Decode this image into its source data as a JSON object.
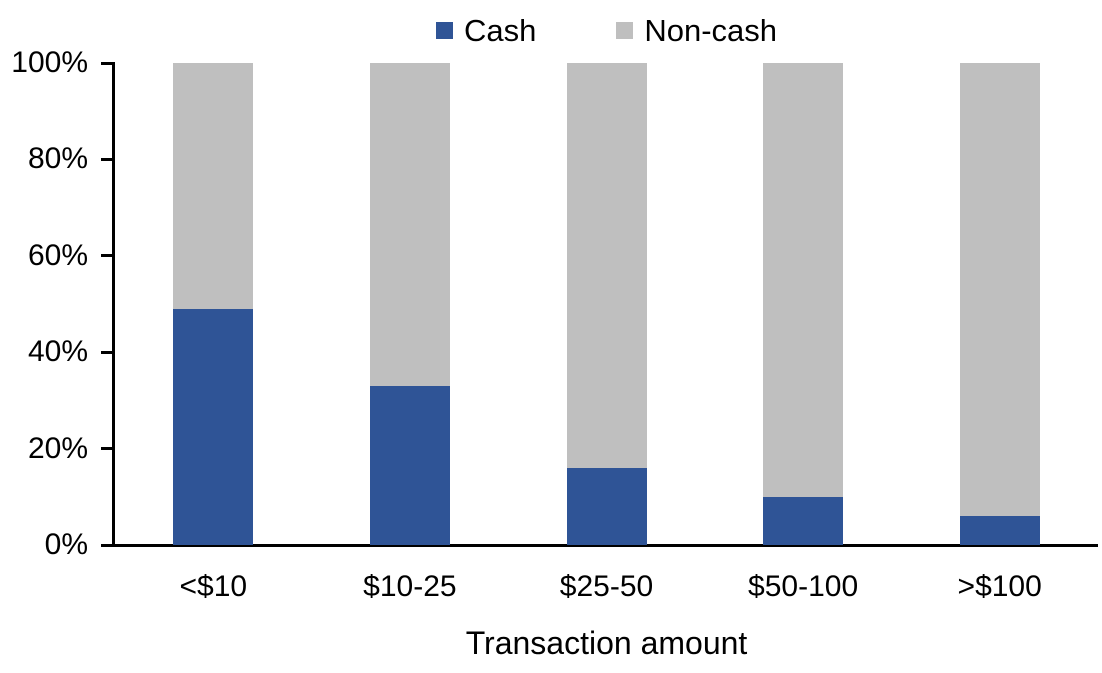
{
  "chart_data": {
    "type": "bar",
    "stacked": true,
    "percent_stacked": true,
    "title": "",
    "xlabel": "Transaction amount",
    "ylabel": "",
    "categories": [
      "<$10",
      "$10-25",
      "$25-50",
      "$50-100",
      ">$100"
    ],
    "series": [
      {
        "name": "Cash",
        "color": "#2F5496",
        "values": [
          49,
          33,
          16,
          10,
          6
        ]
      },
      {
        "name": "Non-cash",
        "color": "#BFBFBF",
        "values": [
          51,
          67,
          84,
          90,
          94
        ]
      }
    ],
    "ylim": [
      0,
      100
    ],
    "yticks": [
      0,
      20,
      40,
      60,
      80,
      100
    ],
    "ytick_labels": [
      "0%",
      "20%",
      "40%",
      "60%",
      "80%",
      "100%"
    ],
    "legend_position": "top",
    "grid": false,
    "axis_color": "#000000",
    "text_color": "#000000",
    "background_color": "#FFFFFF"
  }
}
